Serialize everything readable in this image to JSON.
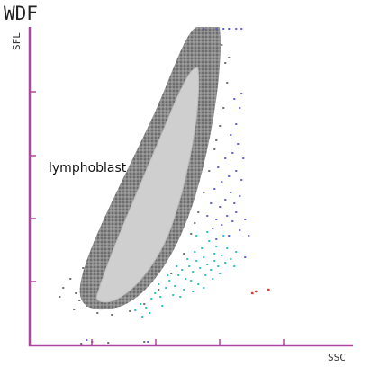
{
  "chart_data": {
    "type": "scatter",
    "title": "WDF",
    "y_label": "SFL",
    "x_label": "SSC",
    "annotations": [
      "lymphoblast"
    ]
  }
}
